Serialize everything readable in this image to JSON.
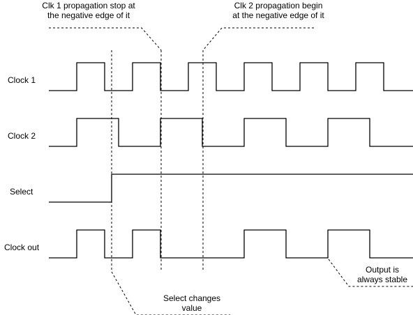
{
  "signals": [
    {
      "id": "clock1",
      "label": "Clock 1",
      "levels": [
        0,
        1,
        0,
        1,
        0,
        1,
        0,
        1,
        0,
        1,
        0,
        1,
        0
      ]
    },
    {
      "id": "clock2",
      "label": "Clock 2",
      "levels": [
        0,
        1,
        0,
        1,
        0,
        1,
        0,
        1,
        0
      ]
    },
    {
      "id": "select",
      "label": "Select",
      "levels": [
        0,
        1
      ]
    },
    {
      "id": "clockout",
      "label": "Clock out",
      "levels": [
        0,
        1,
        0,
        1,
        0,
        1,
        0,
        1,
        0
      ]
    }
  ],
  "annotations": {
    "clk1_stop": {
      "line1": "Clk 1 propagation stop at",
      "line2": "the negative edge of it"
    },
    "clk2_begin": {
      "line1": "Clk 2 propagation begin",
      "line2": "at the negative edge of it"
    },
    "select_changes": {
      "line1": "Select changes",
      "line2": "value"
    },
    "output_stable": {
      "line1": "Output is",
      "line2": "always stable"
    }
  },
  "colors": {
    "line": "#000000",
    "background": "#ffffff"
  }
}
